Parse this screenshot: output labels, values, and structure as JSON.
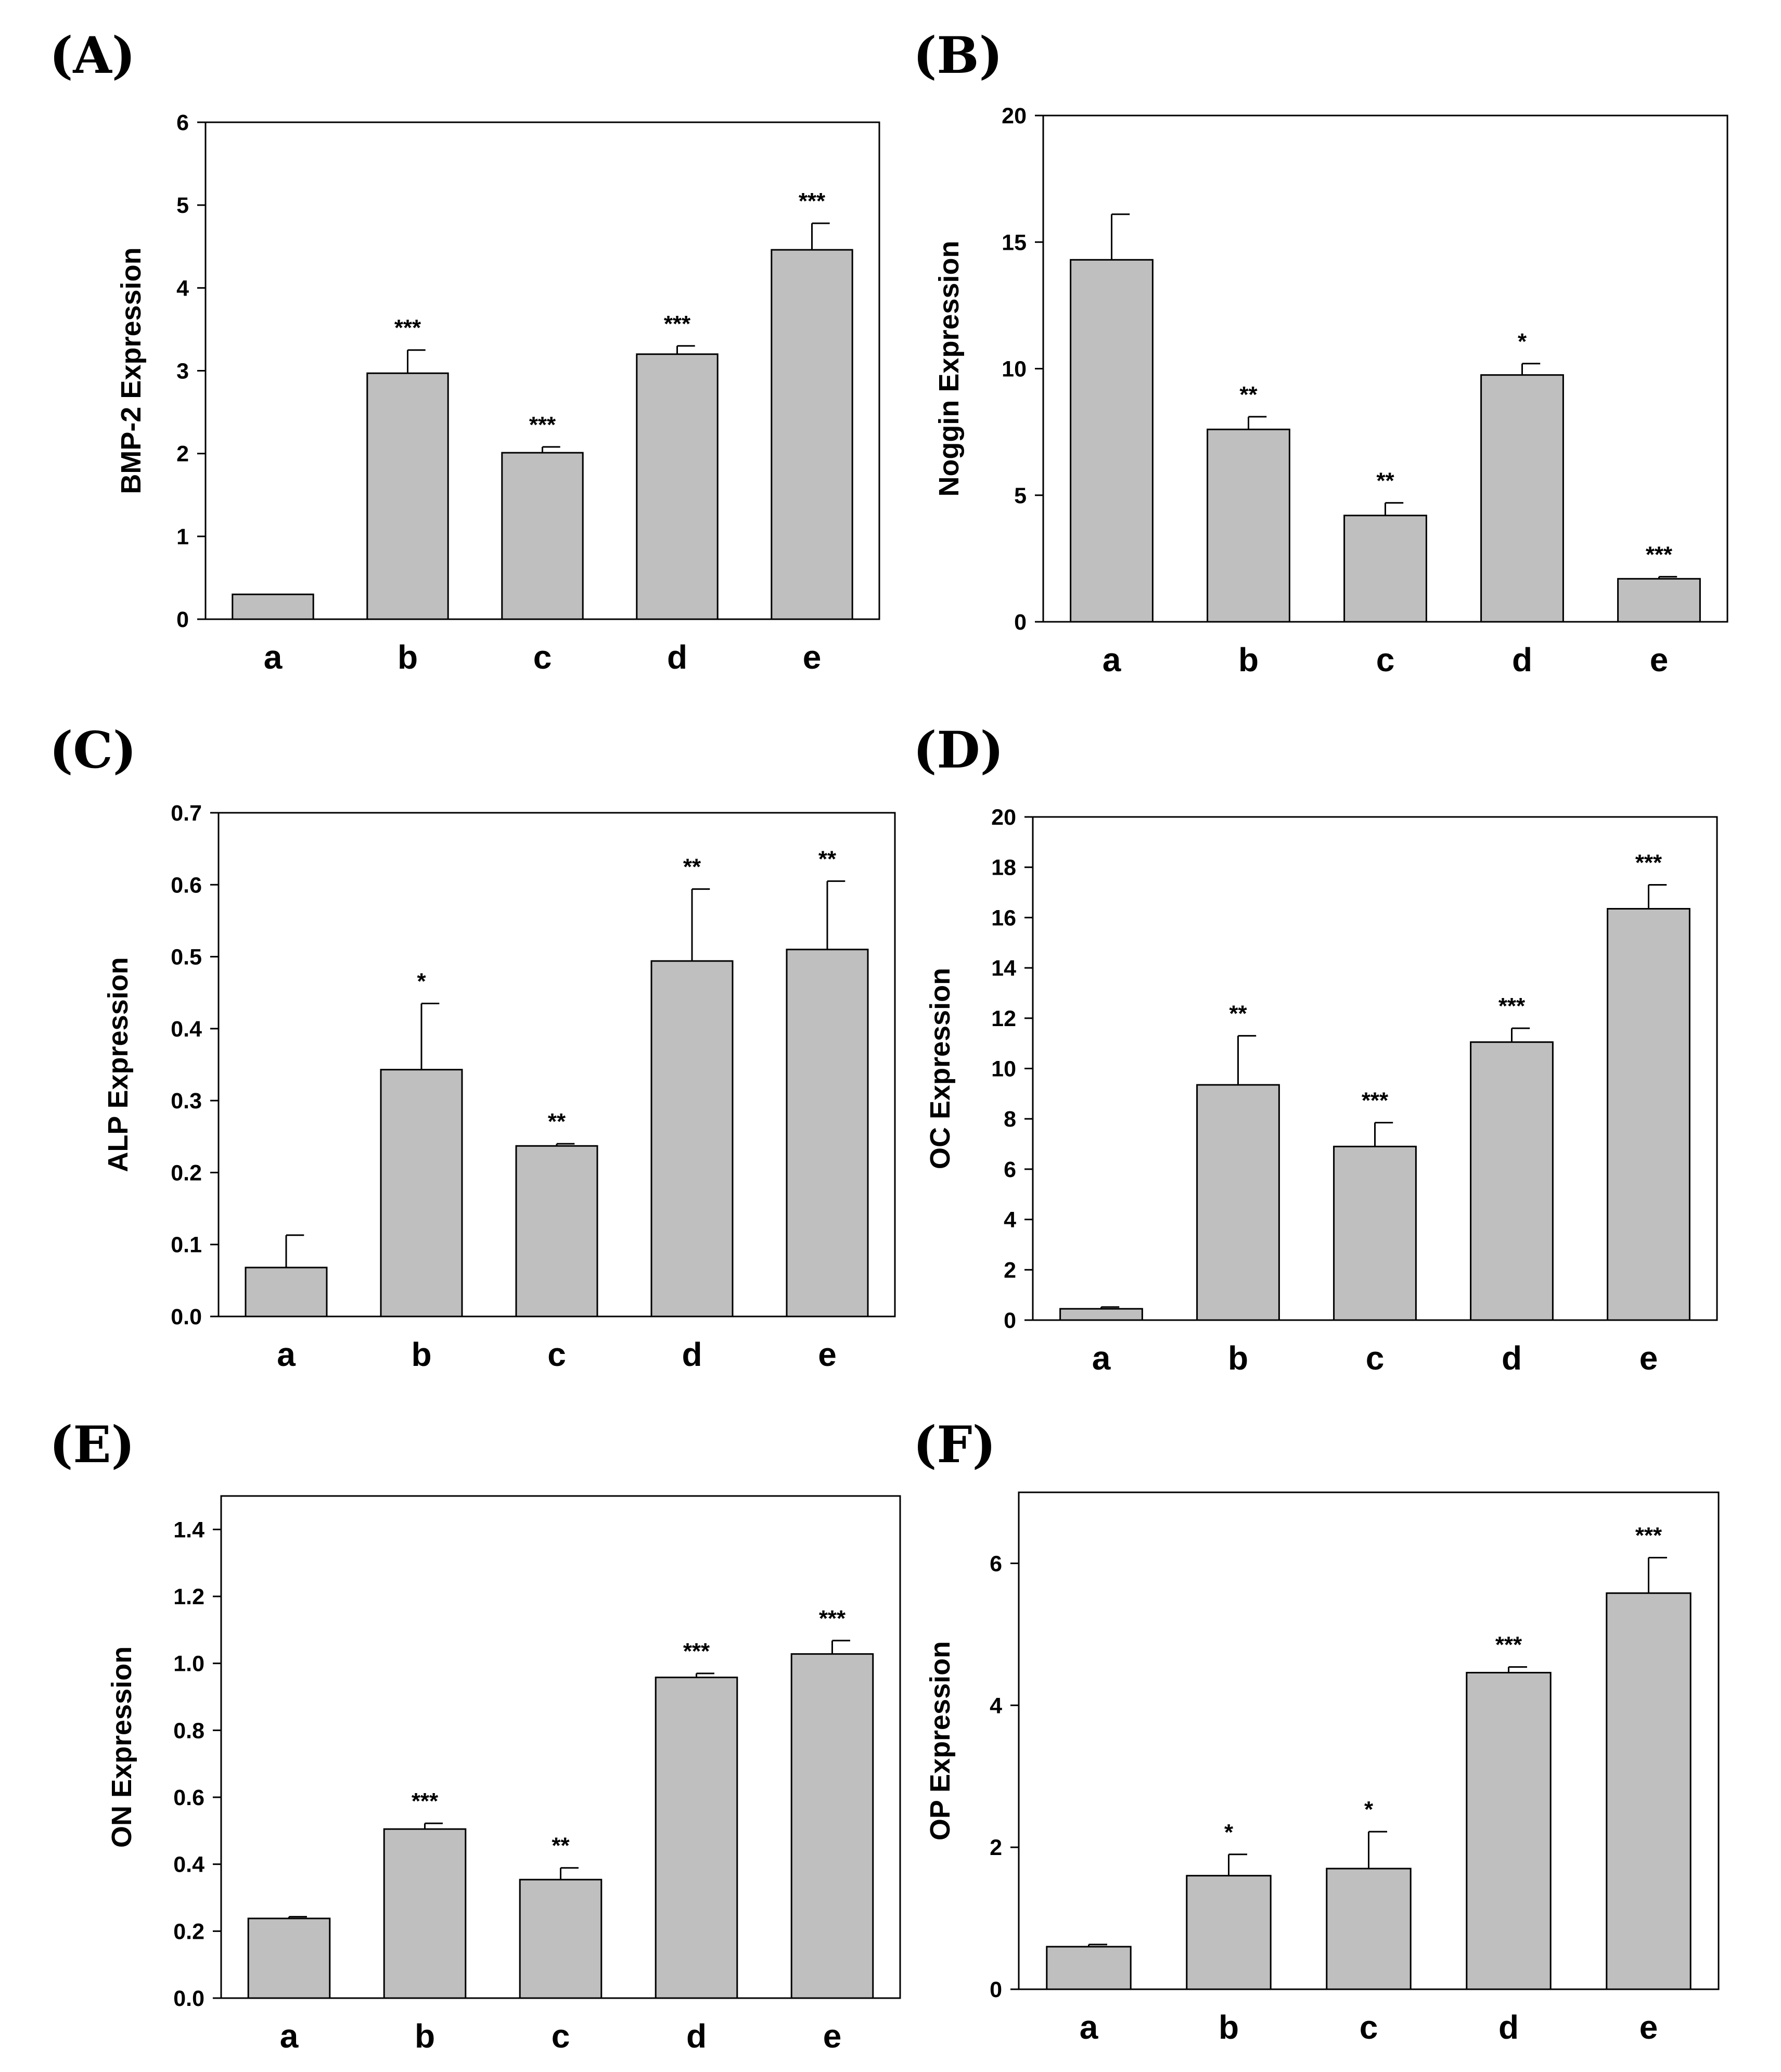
{
  "chart_data": [
    {
      "panel": "(A)",
      "type": "bar",
      "categories": [
        "a",
        "b",
        "c",
        "d",
        "e"
      ],
      "values": [
        0.3,
        2.97,
        2.01,
        3.2,
        4.46
      ],
      "errors": [
        0,
        0.28,
        0.07,
        0.1,
        0.32
      ],
      "significance": [
        "",
        "***",
        "***",
        "***",
        "***"
      ],
      "ylabel": "BMP-2 Expression",
      "xlabel": "",
      "ylim": [
        0,
        6
      ],
      "yticks": [
        "0",
        "1",
        "2",
        "3",
        "4",
        "5",
        "6"
      ],
      "bar_color": "#bfbfbf"
    },
    {
      "panel": "(B)",
      "type": "bar",
      "categories": [
        "a",
        "b",
        "c",
        "d",
        "e"
      ],
      "values": [
        14.3,
        7.6,
        4.2,
        9.75,
        1.7
      ],
      "errors": [
        1.8,
        0.5,
        0.5,
        0.45,
        0.08
      ],
      "significance": [
        "",
        "**",
        "**",
        "*",
        "***"
      ],
      "ylabel": "Noggin Expression",
      "xlabel": "",
      "ylim": [
        0,
        20
      ],
      "yticks": [
        "0",
        "5",
        "10",
        "15",
        "20"
      ],
      "bar_color": "#bfbfbf"
    },
    {
      "panel": "(C)",
      "type": "bar",
      "categories": [
        "a",
        "b",
        "c",
        "d",
        "e"
      ],
      "values": [
        0.068,
        0.343,
        0.237,
        0.494,
        0.51
      ],
      "errors": [
        0.045,
        0.092,
        0.003,
        0.1,
        0.095
      ],
      "significance": [
        "",
        "*",
        "**",
        "**",
        "**"
      ],
      "ylabel": "ALP Expression",
      "xlabel": "",
      "ylim": [
        0,
        0.7
      ],
      "yticks": [
        "0.0",
        "0.1",
        "0.2",
        "0.3",
        "0.4",
        "0.5",
        "0.6",
        "0.7"
      ],
      "bar_color": "#bfbfbf"
    },
    {
      "panel": "(D)",
      "type": "bar",
      "categories": [
        "a",
        "b",
        "c",
        "d",
        "e"
      ],
      "values": [
        0.45,
        9.35,
        6.9,
        11.05,
        16.35
      ],
      "errors": [
        0.07,
        1.95,
        0.95,
        0.55,
        0.95
      ],
      "significance": [
        "",
        "**",
        "***",
        "***",
        "***"
      ],
      "ylabel": "OC Expression",
      "xlabel": "",
      "ylim": [
        0,
        20
      ],
      "yticks": [
        "0",
        "2",
        "4",
        "6",
        "8",
        "10",
        "12",
        "14",
        "16",
        "18",
        "20"
      ],
      "bar_color": "#bfbfbf"
    },
    {
      "panel": "(E)",
      "type": "bar",
      "categories": [
        "a",
        "b",
        "c",
        "d",
        "e"
      ],
      "values": [
        0.238,
        0.505,
        0.354,
        0.958,
        1.028
      ],
      "errors": [
        0.005,
        0.017,
        0.035,
        0.012,
        0.04
      ],
      "significance": [
        "",
        "***",
        "**",
        "***",
        "***"
      ],
      "ylabel": "ON Expression",
      "xlabel": "",
      "ylim": [
        0,
        1.5
      ],
      "yticks": [
        "0.0",
        "0.2",
        "0.4",
        "0.6",
        "0.8",
        "1.0",
        "1.2",
        "1.4"
      ],
      "bar_color": "#bfbfbf"
    },
    {
      "panel": "(F)",
      "type": "bar",
      "categories": [
        "a",
        "b",
        "c",
        "d",
        "e"
      ],
      "values": [
        0.6,
        1.6,
        1.7,
        4.46,
        5.58
      ],
      "errors": [
        0.03,
        0.3,
        0.52,
        0.08,
        0.5
      ],
      "significance": [
        "",
        "*",
        "*",
        "***",
        "***"
      ],
      "ylabel": "OP Expression",
      "xlabel": "",
      "ylim": [
        0,
        7
      ],
      "yticks": [
        "0",
        "2",
        "4",
        "6"
      ],
      "bar_color": "#bfbfbf"
    }
  ]
}
